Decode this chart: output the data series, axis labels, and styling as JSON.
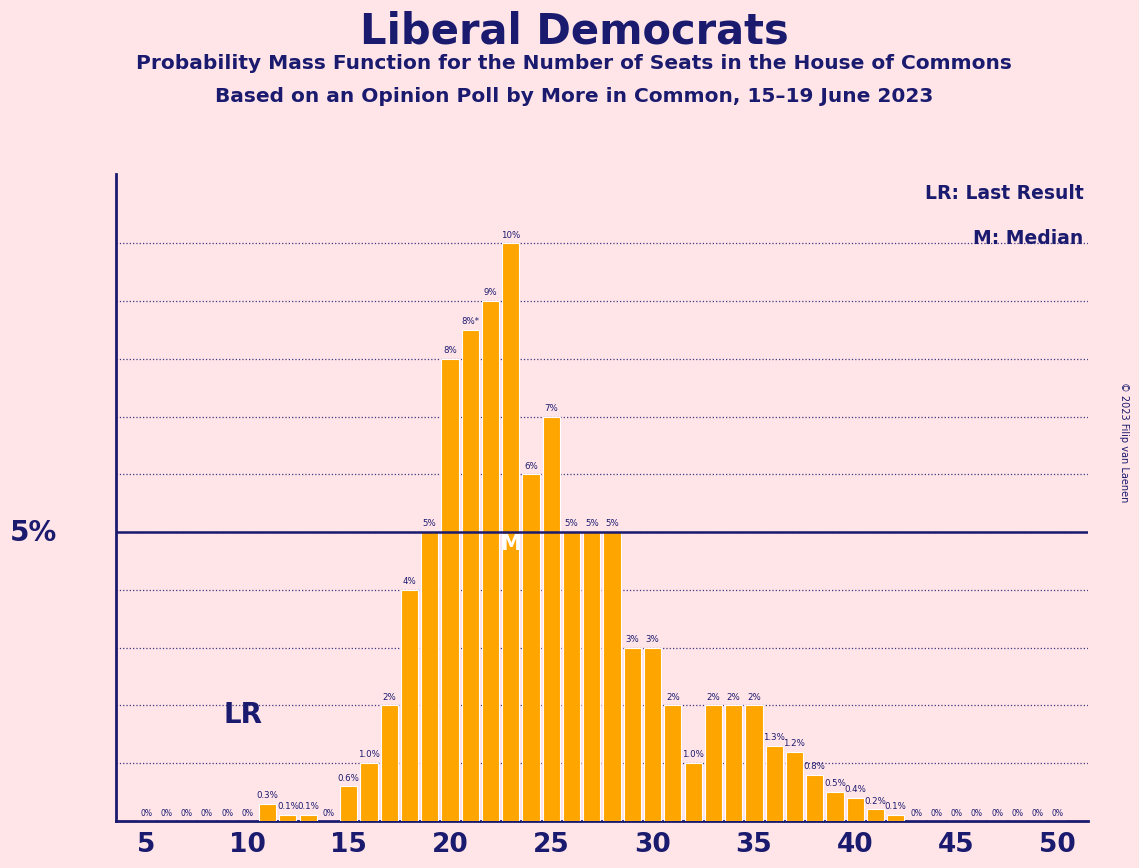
{
  "title": "Liberal Democrats",
  "subtitle1": "Probability Mass Function for the Number of Seats in the House of Commons",
  "subtitle2": "Based on an Opinion Poll by More in Common, 15–19 June 2023",
  "copyright": "© 2023 Filip van Laenen",
  "legend_lr": "LR: Last Result",
  "legend_m": "M: Median",
  "ylabel_5pct": "5%",
  "bar_color": "#FFA500",
  "background_color": "#FFE4E8",
  "title_color": "#1a1a6e",
  "axis_color": "#1a1a6e",
  "bar_edge_color": "white",
  "median_color": "white",
  "five_pct_line_color": "#1a1a6e",
  "grid_color": "#1a1a6e",
  "seats": [
    5,
    6,
    7,
    8,
    9,
    10,
    11,
    12,
    13,
    14,
    15,
    16,
    17,
    18,
    19,
    20,
    21,
    22,
    23,
    24,
    25,
    26,
    27,
    28,
    29,
    30,
    31,
    32,
    33,
    34,
    35,
    36,
    37,
    38,
    39,
    40,
    41,
    42,
    43,
    44,
    45,
    46,
    47,
    48,
    49,
    50
  ],
  "probabilities": [
    0.0,
    0.0,
    0.0,
    0.0,
    0.0,
    0.0,
    0.3,
    0.1,
    0.1,
    0.0,
    0.6,
    1.0,
    2.0,
    4.0,
    5.0,
    8.0,
    8.5,
    9.0,
    10.0,
    6.0,
    7.0,
    5.0,
    5.0,
    5.0,
    3.0,
    3.0,
    2.0,
    1.0,
    2.0,
    2.0,
    2.0,
    1.3,
    1.2,
    0.8,
    0.5,
    0.4,
    0.2,
    0.1,
    0.0,
    0.0,
    0.0,
    0.0,
    0.0,
    0.0,
    0.0,
    0.0
  ],
  "bar_labels": [
    "0%",
    "0%",
    "0%",
    "0%",
    "0%",
    "0%",
    "0.3%",
    "0.1%",
    "0.1%",
    "0%",
    "0.6%",
    "1.0%",
    "2%",
    "4%",
    "5%",
    "8%",
    "8%*",
    "9%",
    "10%",
    "6%",
    "7%",
    "5%",
    "5%",
    "5%",
    "3%",
    "3%",
    "2%",
    "1.0%",
    "2%",
    "2%",
    "2%",
    "1.3%",
    "1.2%",
    "0.8%",
    "0.5%",
    "0.4%",
    "0.2%",
    "0.1%",
    "0%",
    "0%",
    "0%",
    "0%",
    "0%",
    "0%",
    "0%",
    "0%"
  ],
  "lr_seat": 11,
  "lr_label_seat": 11,
  "median_seat": 23,
  "five_pct_line": 5.0,
  "xlim": [
    3.5,
    51.5
  ],
  "ylim": [
    0,
    11.2
  ],
  "xticks": [
    5,
    10,
    15,
    20,
    25,
    30,
    35,
    40,
    45,
    50
  ],
  "yticks_grid": [
    1,
    2,
    3,
    4,
    5,
    6,
    7,
    8,
    9,
    10
  ]
}
